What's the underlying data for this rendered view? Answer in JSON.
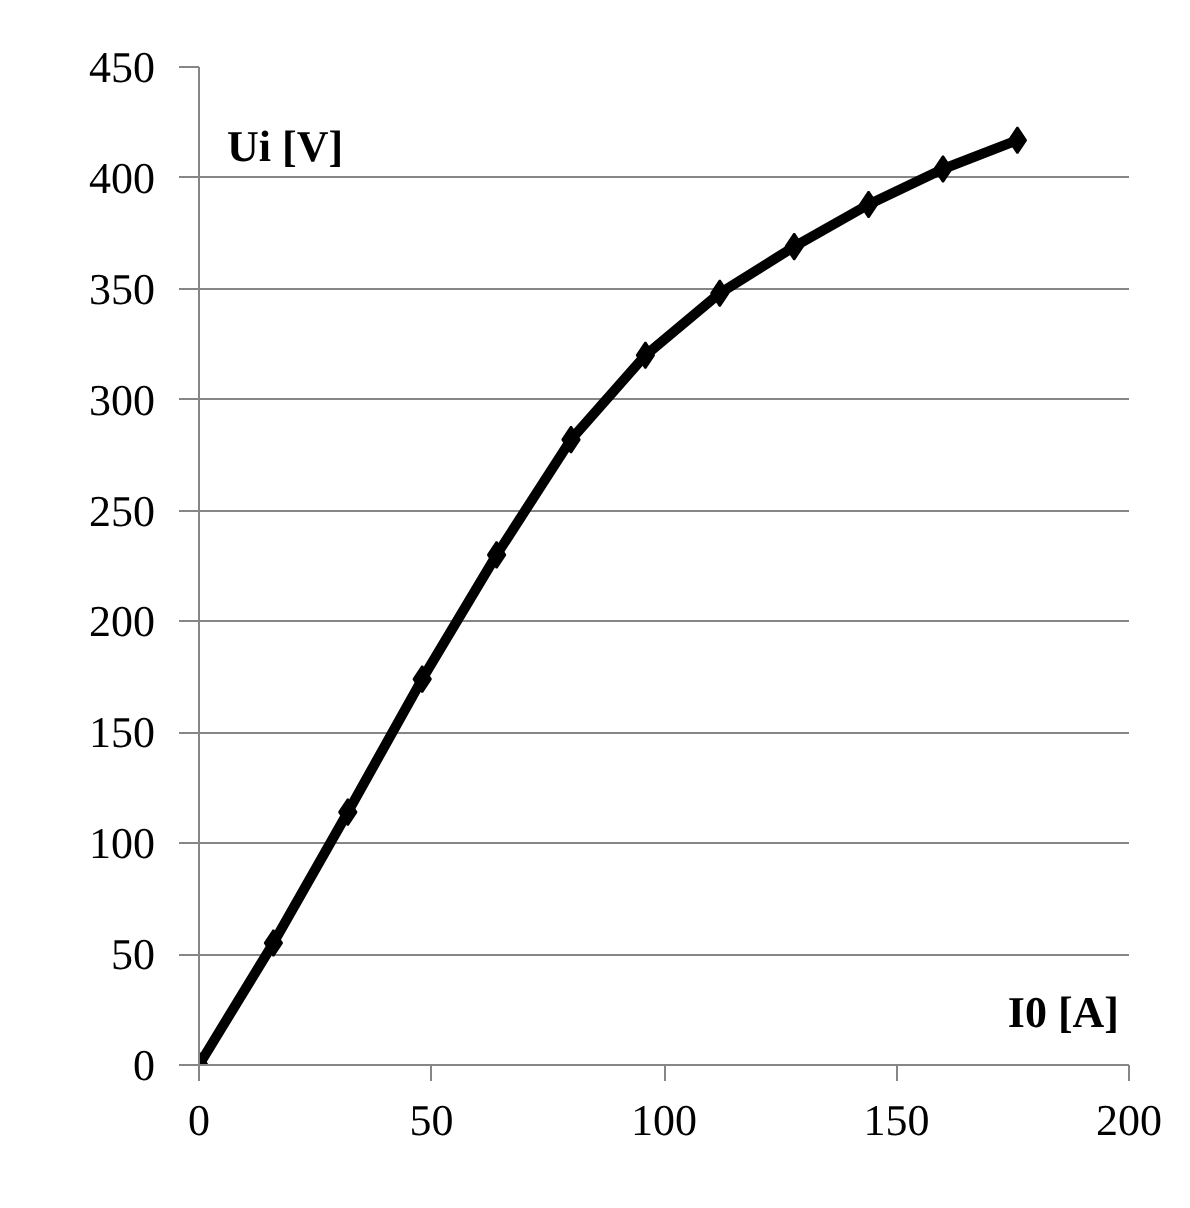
{
  "chart_data": {
    "type": "line",
    "xlabel": "I0 [A]",
    "ylabel": "Ui [V]",
    "x": [
      0,
      16,
      32,
      48,
      64,
      80,
      96,
      112,
      128,
      144,
      160,
      176
    ],
    "series": [
      {
        "color": "#000000",
        "values": [
          0,
          55,
          114,
          174,
          230,
          282,
          320,
          348,
          369,
          388,
          404,
          417
        ]
      }
    ],
    "xlim": [
      0,
      200
    ],
    "xticks": [
      0,
      50,
      100,
      150,
      200
    ],
    "ylim": [
      0,
      450
    ],
    "yticks": [
      0,
      50,
      100,
      150,
      200,
      250,
      300,
      350,
      400,
      450
    ],
    "grid": "y",
    "marker": "diamond",
    "line_style": "solid"
  }
}
